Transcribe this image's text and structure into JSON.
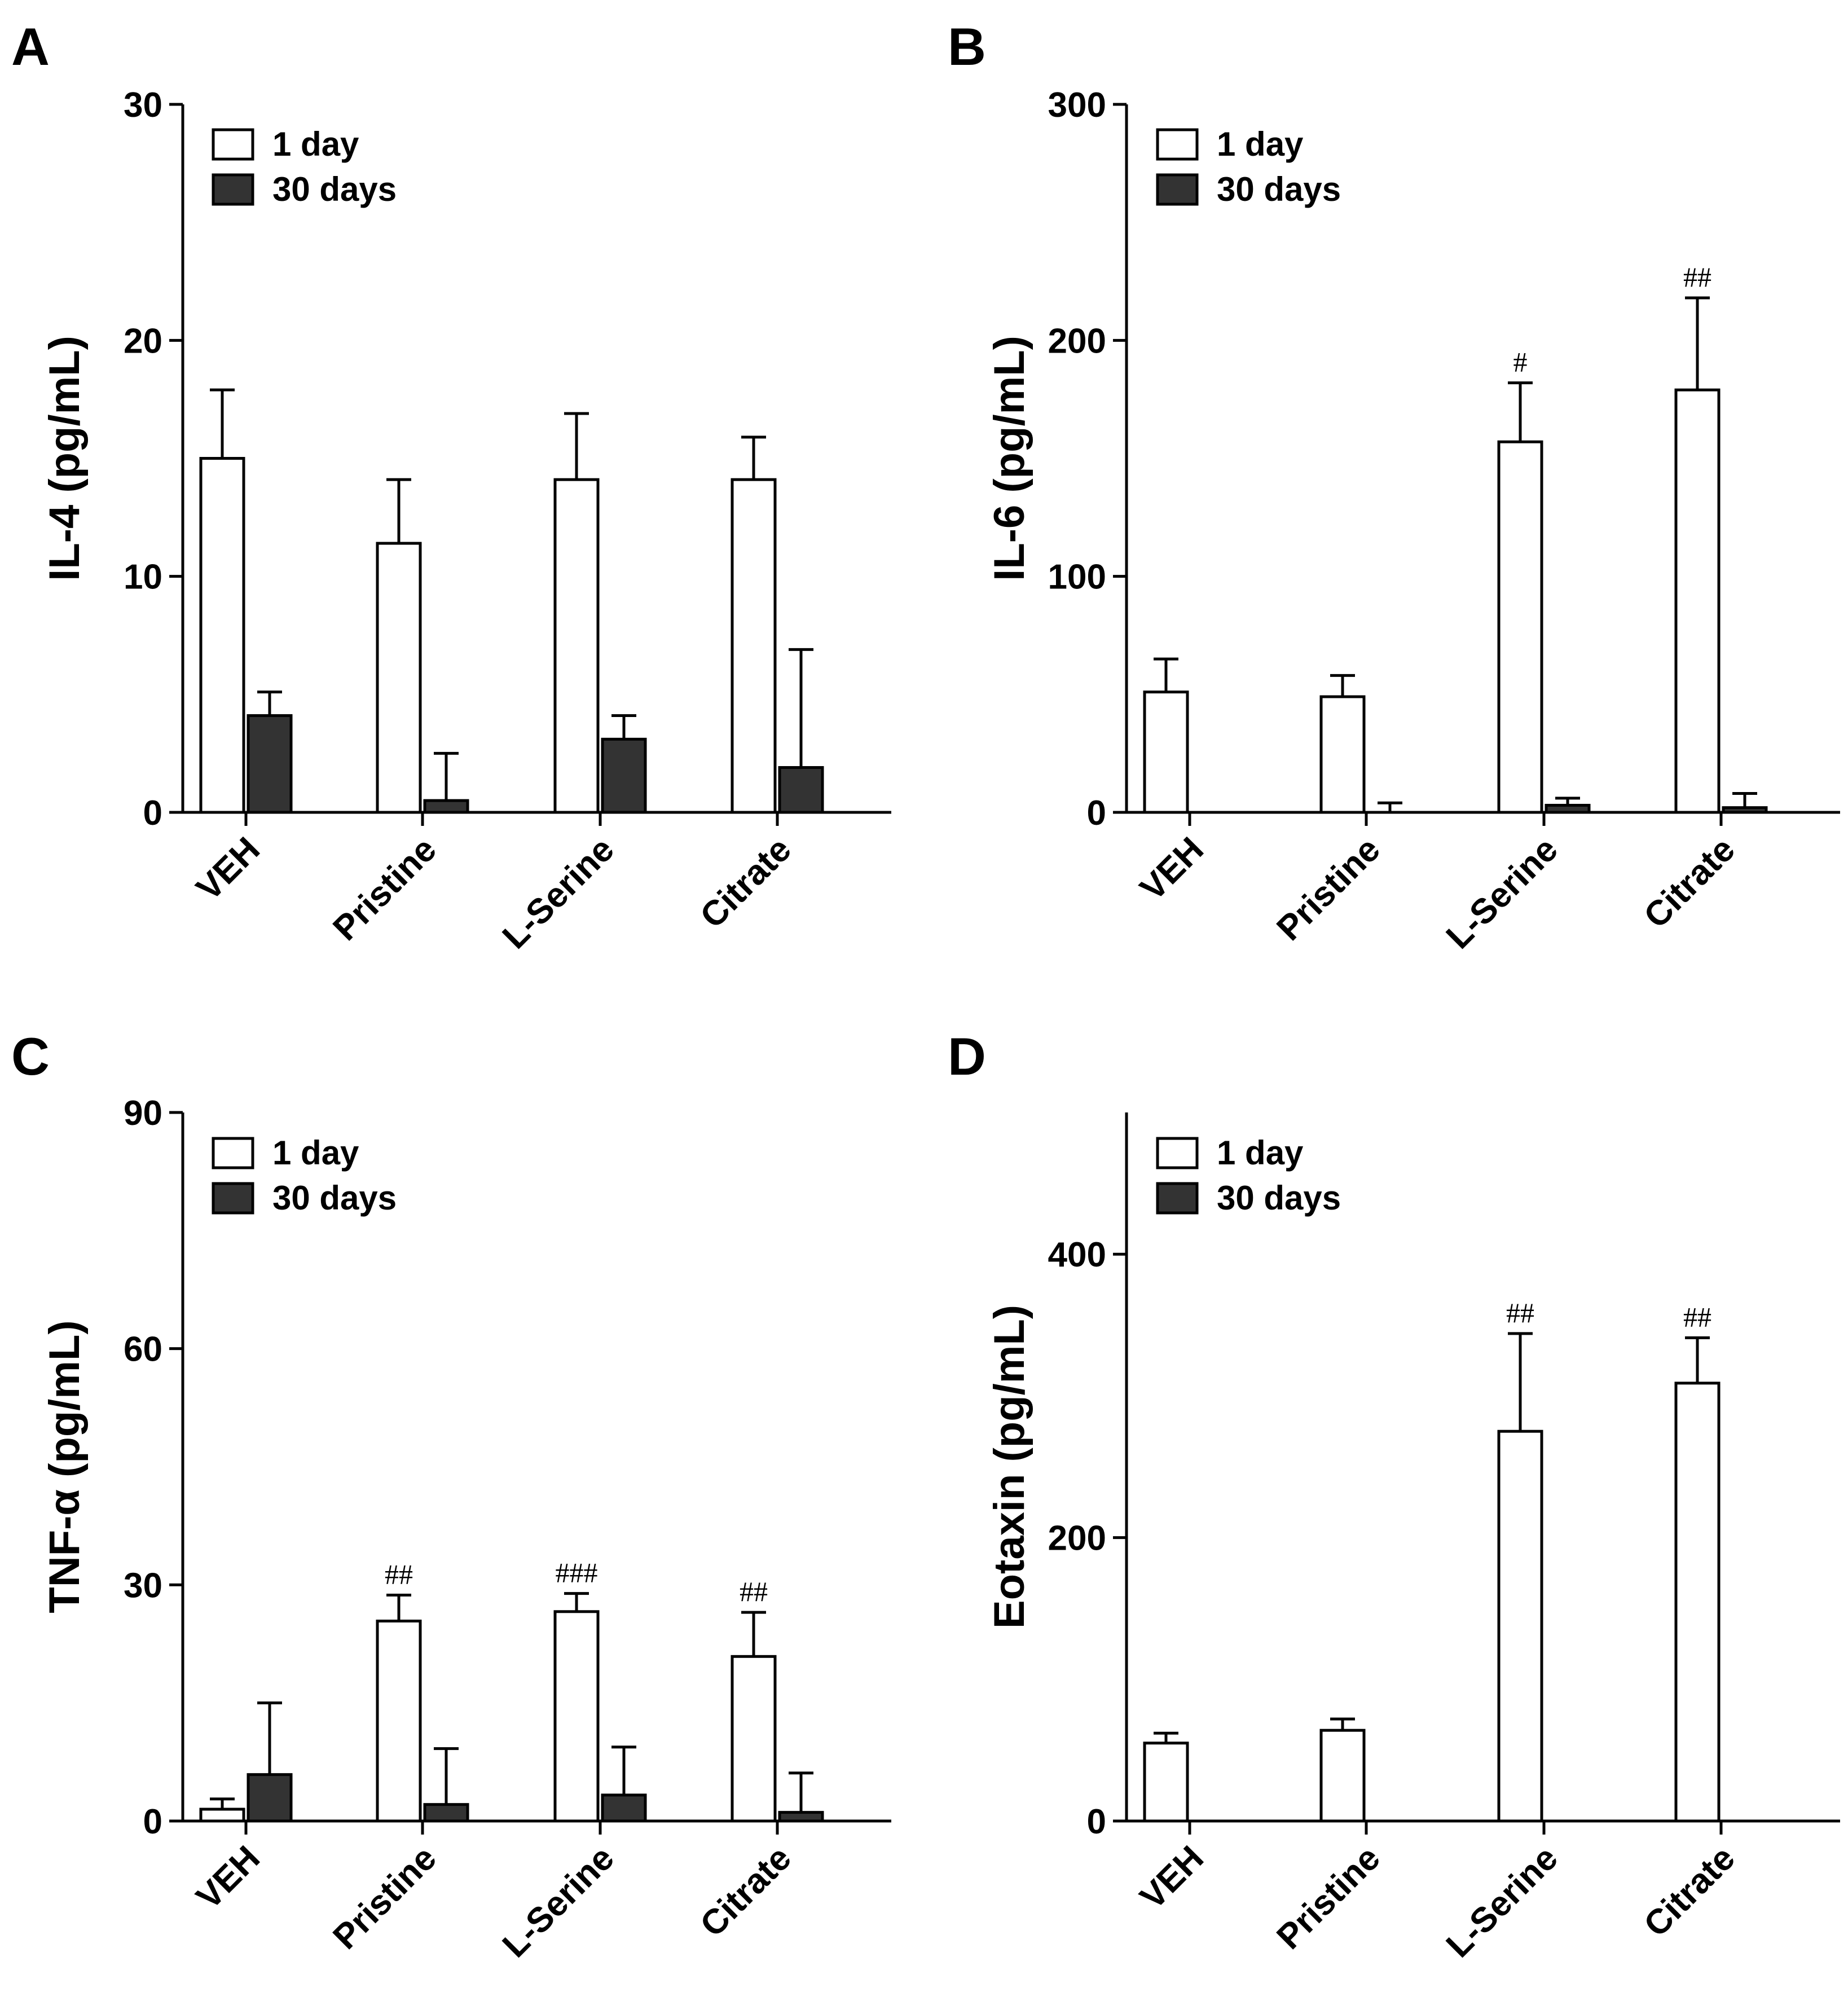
{
  "colors": {
    "bar_1day": "#ffffff",
    "bar_30days": "#333333",
    "stroke": "#000000"
  },
  "chart_data": [
    {
      "panel": "A",
      "type": "bar",
      "ylabel": "IL-4 (pg/mL)",
      "ylim": [
        0,
        30
      ],
      "yticks": [
        0,
        10,
        20,
        30
      ],
      "categories": [
        "VEH",
        "Pristine",
        "L-Serine",
        "Citrate"
      ],
      "legend": [
        "1 day",
        "30 days"
      ],
      "legend_position": "top-left",
      "series": [
        {
          "name": "1 day",
          "values": [
            15.0,
            11.4,
            14.1,
            14.1
          ],
          "errors": [
            2.9,
            2.7,
            2.8,
            1.8
          ],
          "sig": [
            "",
            "",
            "",
            ""
          ]
        },
        {
          "name": "30 days",
          "values": [
            4.1,
            0.5,
            3.1,
            1.9
          ],
          "errors": [
            1.0,
            2.0,
            1.0,
            5.0
          ],
          "sig": [
            "",
            "",
            "",
            ""
          ]
        }
      ]
    },
    {
      "panel": "B",
      "type": "bar",
      "ylabel": "IL-6 (pg/mL)",
      "ylim": [
        0,
        300
      ],
      "yticks": [
        0,
        100,
        200,
        300
      ],
      "categories": [
        "VEH",
        "Pristine",
        "L-Serine",
        "Citrate"
      ],
      "legend": [
        "1 day",
        "30 days"
      ],
      "legend_position": "top-left",
      "series": [
        {
          "name": "1 day",
          "values": [
            51,
            49,
            157,
            179
          ],
          "errors": [
            14,
            9,
            25,
            39
          ],
          "sig": [
            "",
            "",
            "#",
            "##"
          ]
        },
        {
          "name": "30 days",
          "values": [
            0,
            0,
            3,
            2
          ],
          "errors": [
            0,
            4,
            3,
            6
          ],
          "sig": [
            "",
            "",
            "",
            ""
          ]
        }
      ]
    },
    {
      "panel": "C",
      "type": "bar",
      "ylabel": "TNF-α (pg/mL)",
      "ylim": [
        0,
        90
      ],
      "yticks": [
        0,
        30,
        60,
        90
      ],
      "categories": [
        "VEH",
        "Pristine",
        "L-Serine",
        "Citrate"
      ],
      "legend": [
        "1 day",
        "30 days"
      ],
      "legend_position": "top-left",
      "series": [
        {
          "name": "1 day",
          "values": [
            1.5,
            25.4,
            26.6,
            20.9
          ],
          "errors": [
            1.3,
            3.3,
            2.3,
            5.6
          ],
          "sig": [
            "",
            "##",
            "###",
            "##"
          ]
        },
        {
          "name": "30 days",
          "values": [
            5.9,
            2.1,
            3.3,
            1.1
          ],
          "errors": [
            9.1,
            7.1,
            6.1,
            5.0
          ],
          "sig": [
            "",
            "",
            "",
            ""
          ]
        }
      ]
    },
    {
      "panel": "D",
      "type": "bar",
      "ylabel": "Eotaxin (pg/mL)",
      "ylim": [
        0,
        500
      ],
      "yticks": [
        0,
        200,
        400
      ],
      "categories": [
        "VEH",
        "Pristine",
        "L-Serine",
        "Citrate"
      ],
      "legend": [
        "1 day",
        "30 days"
      ],
      "legend_position": "top-left",
      "series": [
        {
          "name": "1 day",
          "values": [
            55,
            64,
            275,
            309
          ],
          "errors": [
            7,
            8,
            69,
            32
          ],
          "sig": [
            "",
            "",
            "##",
            "##"
          ]
        },
        {
          "name": "30 days",
          "values": [
            0,
            0,
            0,
            0
          ],
          "errors": [
            0,
            0,
            0,
            0
          ],
          "sig": [
            "",
            "",
            "",
            ""
          ]
        }
      ]
    }
  ]
}
